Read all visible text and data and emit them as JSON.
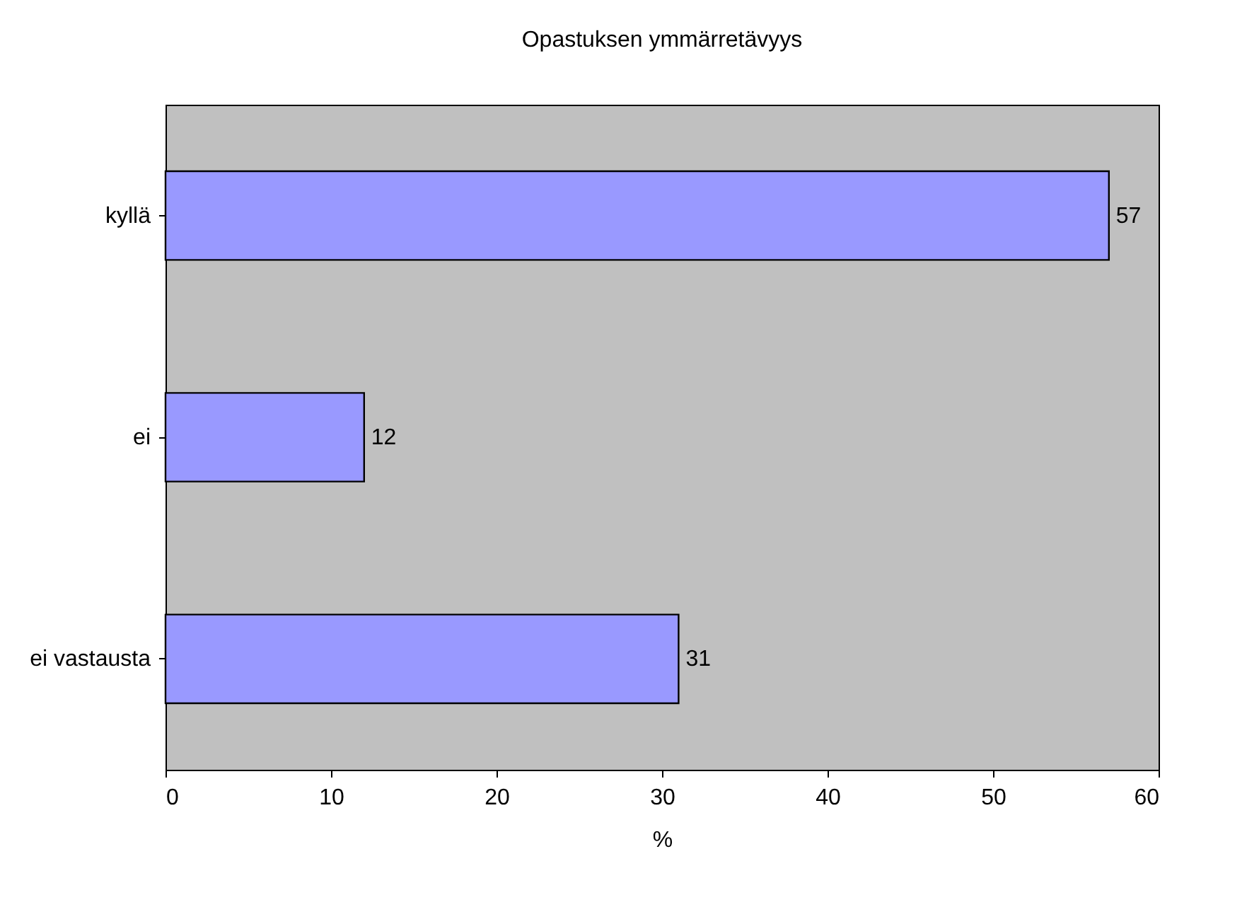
{
  "chart_data": {
    "type": "bar",
    "orientation": "horizontal",
    "title": "Opastuksen ymmärretävyys",
    "xlabel": "%",
    "categories": [
      "kyllä",
      "ei",
      "ei vastausta"
    ],
    "values": [
      57,
      12,
      31
    ],
    "color": "#9999ff",
    "xlim": [
      0,
      60
    ],
    "xticks": [
      0,
      10,
      20,
      30,
      40,
      50,
      60
    ],
    "data_labels": true,
    "grid": false
  }
}
